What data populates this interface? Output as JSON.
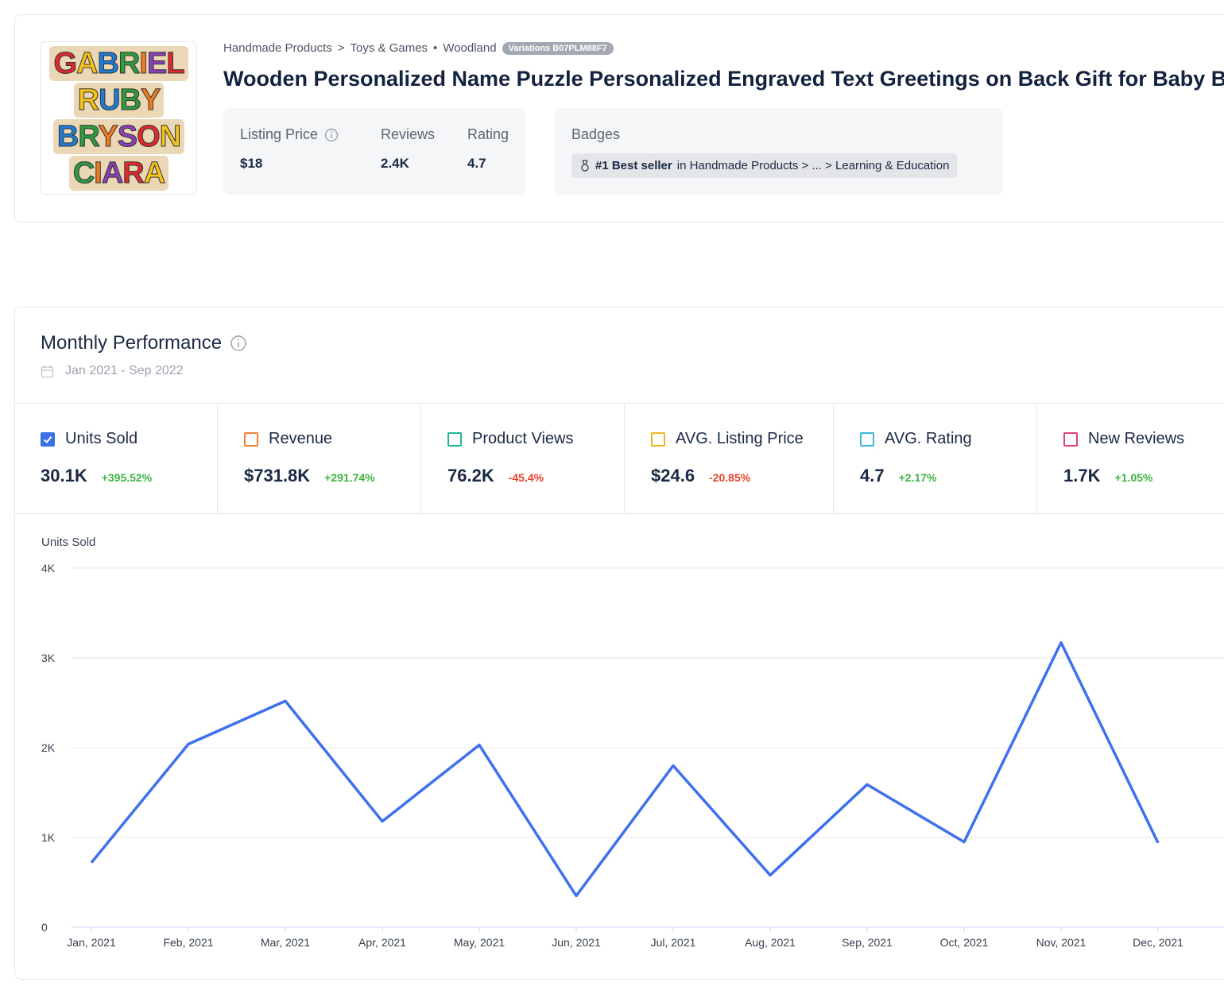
{
  "product": {
    "image_names": [
      "GABRIEL",
      "RUBY",
      "BRYSON",
      "CIARA"
    ],
    "breadcrumb": [
      "Handmade Products",
      "Toys & Games",
      "Woodland"
    ],
    "variations": "Variations B07PLM88F7",
    "title": "Wooden Personalized Name Puzzle Personalized Engraved Text Greetings on Back Gift for Baby Boy",
    "stats": [
      {
        "label": "Listing Price",
        "value": "$18"
      },
      {
        "label": "Reviews",
        "value": "2.4K"
      },
      {
        "label": "Rating",
        "value": "4.7"
      }
    ],
    "badges_label": "Badges",
    "badge": {
      "rank": "#1 Best seller",
      "text": "in Handmade Products > ... > Learning & Education"
    }
  },
  "performance": {
    "title": "Monthly Performance",
    "date_range": "Jan 2021 - Sep 2022",
    "metrics": [
      {
        "label": "Units Sold",
        "value": "30.1K",
        "change": "+395.52%",
        "color": "#3b6fe8",
        "checked": true
      },
      {
        "label": "Revenue",
        "value": "$731.8K",
        "change": "+291.74%",
        "color": "#f57f34",
        "checked": false
      },
      {
        "label": "Product Views",
        "value": "76.2K",
        "change": "-45.4%",
        "color": "#22b39a",
        "checked": false
      },
      {
        "label": "AVG. Listing Price",
        "value": "$24.6",
        "change": "-20.85%",
        "color": "#f5b324",
        "checked": false
      },
      {
        "label": "AVG. Rating",
        "value": "4.7",
        "change": "+2.17%",
        "color": "#3bb7e0",
        "checked": false
      },
      {
        "label": "New Reviews",
        "value": "1.7K",
        "change": "+1.05%",
        "color": "#e0436b",
        "checked": false
      }
    ]
  },
  "chart_data": {
    "type": "line",
    "categories": [
      "Jan, 2021",
      "Feb, 2021",
      "Mar, 2021",
      "Apr, 2021",
      "May, 2021",
      "Jun, 2021",
      "Jul, 2021",
      "Aug, 2021",
      "Sep, 2021",
      "Oct, 2021",
      "Nov, 2021",
      "Dec, 2021"
    ],
    "series": [
      {
        "name": "Units Sold",
        "color": "#3f70ee",
        "values": [
          720,
          2040,
          2520,
          1180,
          2030,
          350,
          1800,
          580,
          1590,
          950,
          3170,
          940
        ]
      }
    ],
    "ylim": [
      0,
      4000
    ],
    "yticks": [
      0,
      {
        "value": 1000,
        "label": "1K"
      },
      {
        "value": 2000,
        "label": "2K"
      },
      {
        "value": 3000,
        "label": "3K"
      },
      {
        "value": 4000,
        "label": "4K"
      }
    ],
    "grid": true
  }
}
